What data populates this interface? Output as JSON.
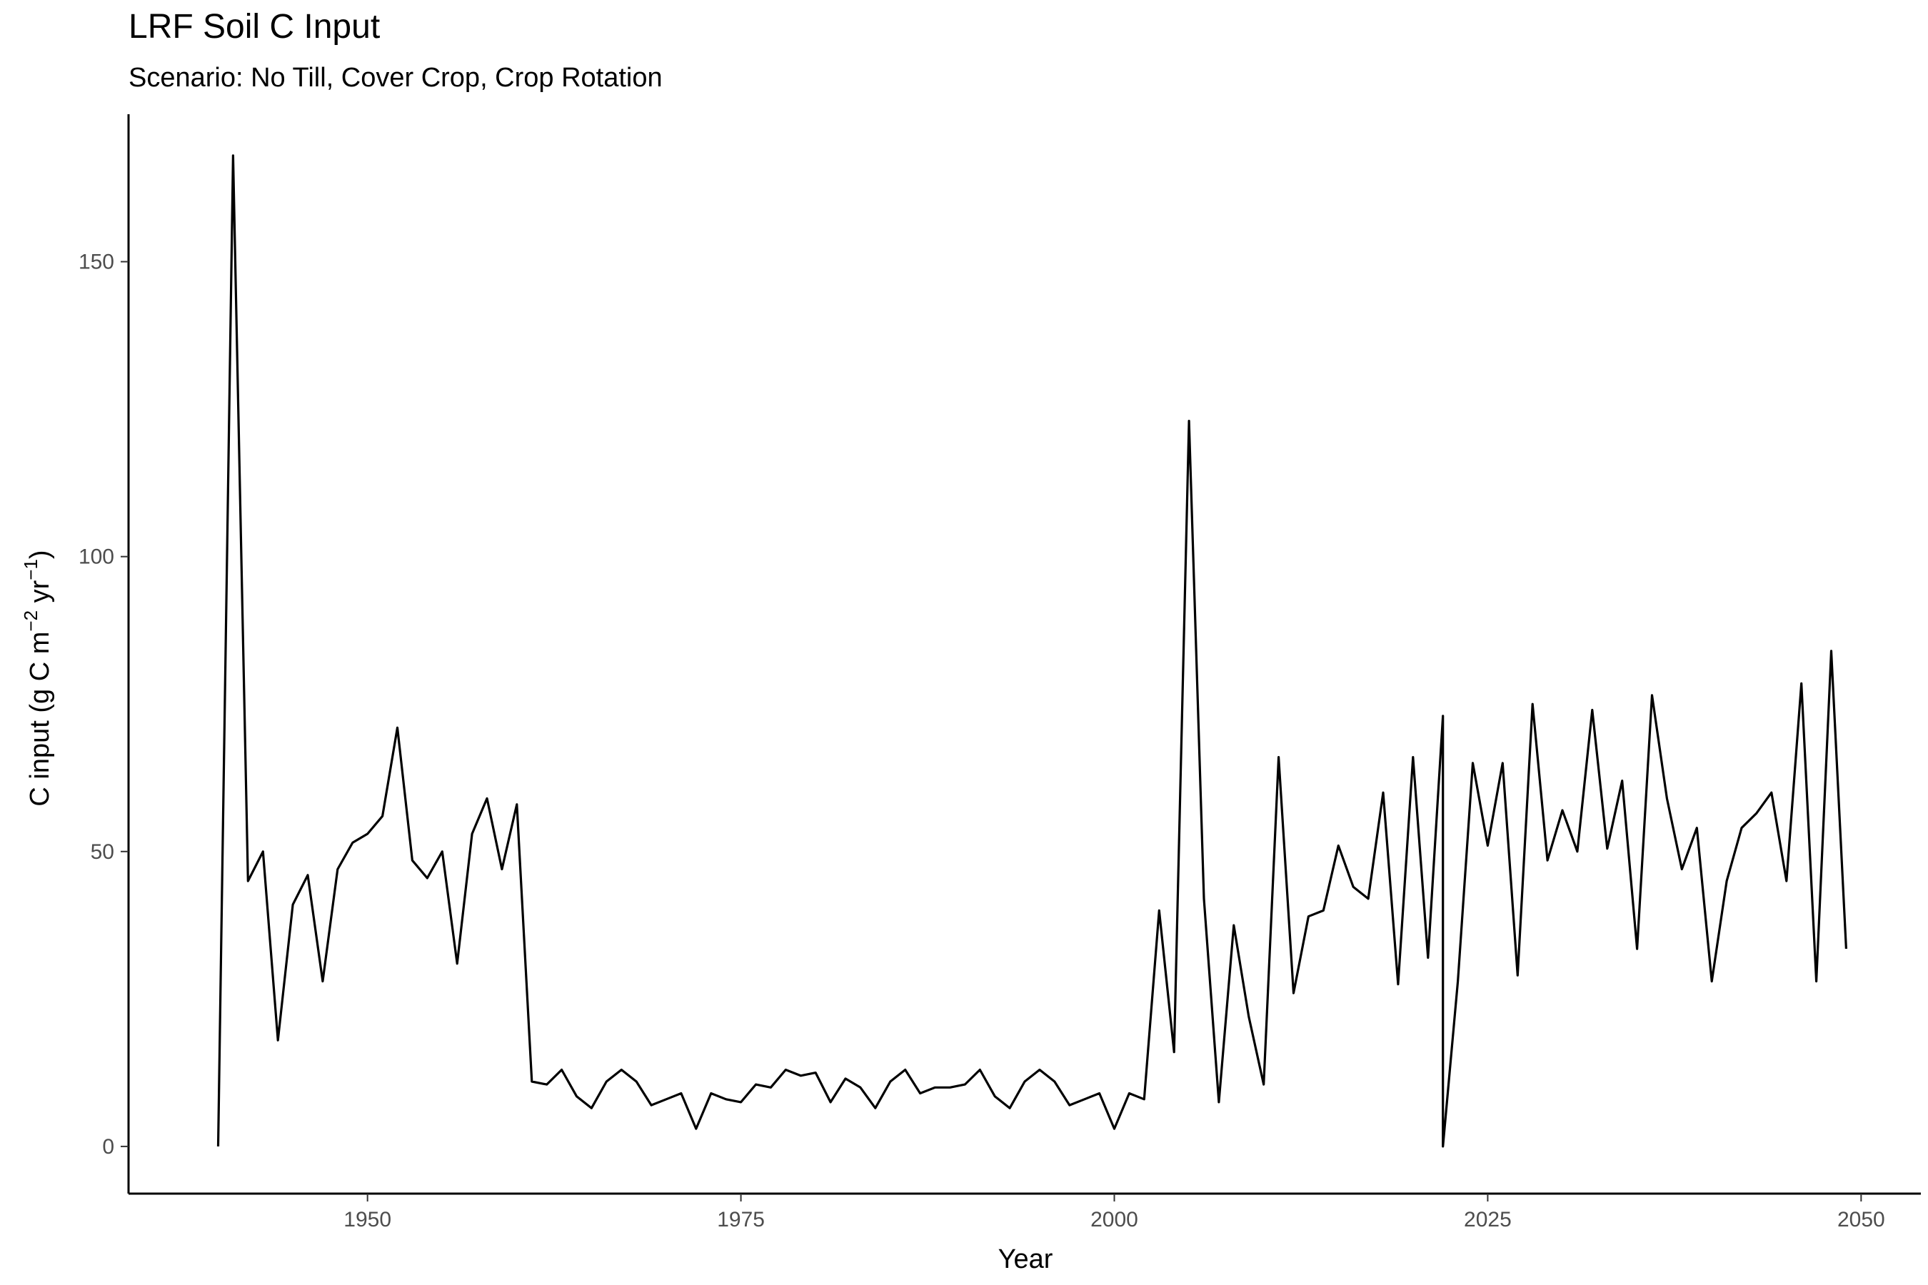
{
  "chart_data": {
    "type": "line",
    "title": "LRF Soil C Input",
    "subtitle": "Scenario: No Till, Cover Crop, Crop Rotation",
    "xlabel": "Year",
    "ylabel": {
      "base": "C input (g C m",
      "sup1": "−2",
      "mid": " yr",
      "sup2": "−1",
      "end": ")"
    },
    "xlim": [
      1934,
      2054
    ],
    "ylim": [
      -8,
      175
    ],
    "xticks": [
      1950,
      1975,
      2000,
      2025,
      2050
    ],
    "yticks": [
      0,
      50,
      100,
      150
    ],
    "grid": false,
    "legend": "none",
    "line_color": "#000000",
    "series": [
      {
        "x": [
          1940,
          1941,
          1942,
          1943,
          1944,
          1945,
          1946,
          1947,
          1948,
          1949,
          1950,
          1951,
          1952,
          1953,
          1954,
          1955,
          1956,
          1957,
          1958,
          1959,
          1960,
          1961,
          1962,
          1963,
          1964,
          1965,
          1966,
          1967,
          1968,
          1969,
          1970,
          1971,
          1972,
          1973,
          1974,
          1975,
          1976,
          1977,
          1978,
          1979,
          1980,
          1981,
          1982,
          1983,
          1984,
          1985,
          1986,
          1987,
          1988,
          1989,
          1990,
          1991,
          1992,
          1993,
          1994,
          1995,
          1996,
          1997,
          1998,
          1999,
          2000,
          2001,
          2002,
          2003,
          2004,
          2005,
          2006,
          2007,
          2008,
          2009,
          2010,
          2011,
          2012,
          2013,
          2014,
          2015,
          2016,
          2017,
          2018,
          2019,
          2020,
          2021,
          2022,
          2022,
          2023,
          2024,
          2025,
          2026,
          2027,
          2028,
          2029,
          2030,
          2031,
          2032,
          2033,
          2034,
          2035,
          2036,
          2037,
          2038,
          2039,
          2040,
          2041,
          2042,
          2043,
          2044,
          2045,
          2046,
          2047,
          2048,
          2049
        ],
        "y": [
          0,
          168,
          45,
          50,
          18,
          41,
          46,
          28,
          47,
          51.5,
          53,
          56,
          71,
          48.5,
          45.5,
          50,
          31,
          53,
          59,
          47,
          58,
          11,
          10.5,
          13,
          8.5,
          6.5,
          11,
          13,
          11,
          7,
          8,
          9,
          3,
          9,
          8,
          7.5,
          10.5,
          10,
          13,
          12,
          12.5,
          7.5,
          11.5,
          10,
          6.5,
          11,
          13,
          9,
          10,
          10,
          10.5,
          13,
          8.5,
          6.5,
          11,
          13,
          11,
          7,
          8,
          9,
          3,
          9,
          8,
          40,
          16,
          123,
          42,
          7.5,
          37.5,
          22,
          10.5,
          66,
          26,
          39,
          40,
          51,
          44,
          42,
          60,
          27.5,
          66,
          32,
          73,
          0,
          28,
          65,
          51,
          65,
          29,
          75,
          48.5,
          57,
          50,
          74,
          50.5,
          62,
          33.5,
          76.5,
          59,
          47,
          54,
          28,
          45,
          54,
          56.5,
          60,
          45,
          78.5,
          28,
          84,
          33.5
        ]
      }
    ]
  }
}
